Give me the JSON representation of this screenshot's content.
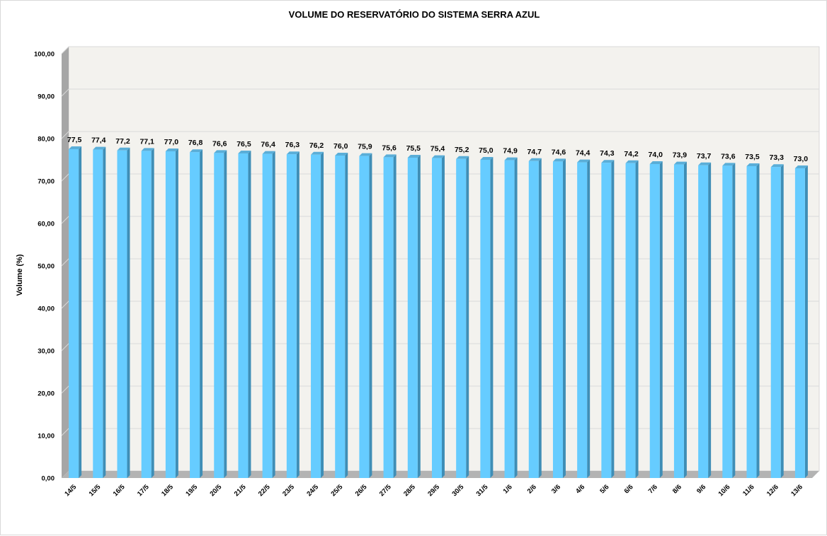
{
  "chart_data": {
    "type": "bar",
    "title": "VOLUME DO RESERVATÓRIO DO SISTEMA SERRA AZUL",
    "xlabel": "",
    "ylabel": "Volume (%)",
    "ylim": [
      0,
      100
    ],
    "y_ticks": [
      "0,00",
      "10,00",
      "20,00",
      "30,00",
      "40,00",
      "50,00",
      "60,00",
      "70,00",
      "80,00",
      "90,00",
      "100,00"
    ],
    "grid": true,
    "categories": [
      "14/5",
      "15/5",
      "16/5",
      "17/5",
      "18/5",
      "19/5",
      "20/5",
      "21/5",
      "22/5",
      "23/5",
      "24/5",
      "25/5",
      "26/5",
      "27/5",
      "28/5",
      "29/5",
      "30/5",
      "31/5",
      "1/6",
      "2/6",
      "3/6",
      "4/6",
      "5/6",
      "6/6",
      "7/6",
      "8/6",
      "9/6",
      "10/6",
      "11/6",
      "12/6",
      "13/6"
    ],
    "values": [
      77.5,
      77.4,
      77.2,
      77.1,
      77.0,
      76.8,
      76.6,
      76.5,
      76.4,
      76.3,
      76.2,
      76.0,
      75.9,
      75.6,
      75.5,
      75.4,
      75.2,
      75.0,
      74.9,
      74.7,
      74.6,
      74.4,
      74.3,
      74.2,
      74.0,
      73.9,
      73.7,
      73.6,
      73.5,
      73.3,
      73.0
    ],
    "data_labels": [
      "77,5",
      "77,4",
      "77,2",
      "77,1",
      "77,0",
      "76,8",
      "76,6",
      "76,5",
      "76,4",
      "76,3",
      "76,2",
      "76,0",
      "75,9",
      "75,6",
      "75,5",
      "75,4",
      "75,2",
      "75,0",
      "74,9",
      "74,7",
      "74,6",
      "74,4",
      "74,3",
      "74,2",
      "74,0",
      "73,9",
      "73,7",
      "73,6",
      "73,5",
      "73,3",
      "73,0"
    ],
    "colors": {
      "bar_front": "#66ccff",
      "bar_side": "#3f8eb6",
      "bar_top": "#5aaed8",
      "plot_back": "#f3f2ee",
      "wall_left": "#a6a6a6",
      "floor": "#b3b3b3",
      "gridline": "#d9d9d9"
    }
  }
}
